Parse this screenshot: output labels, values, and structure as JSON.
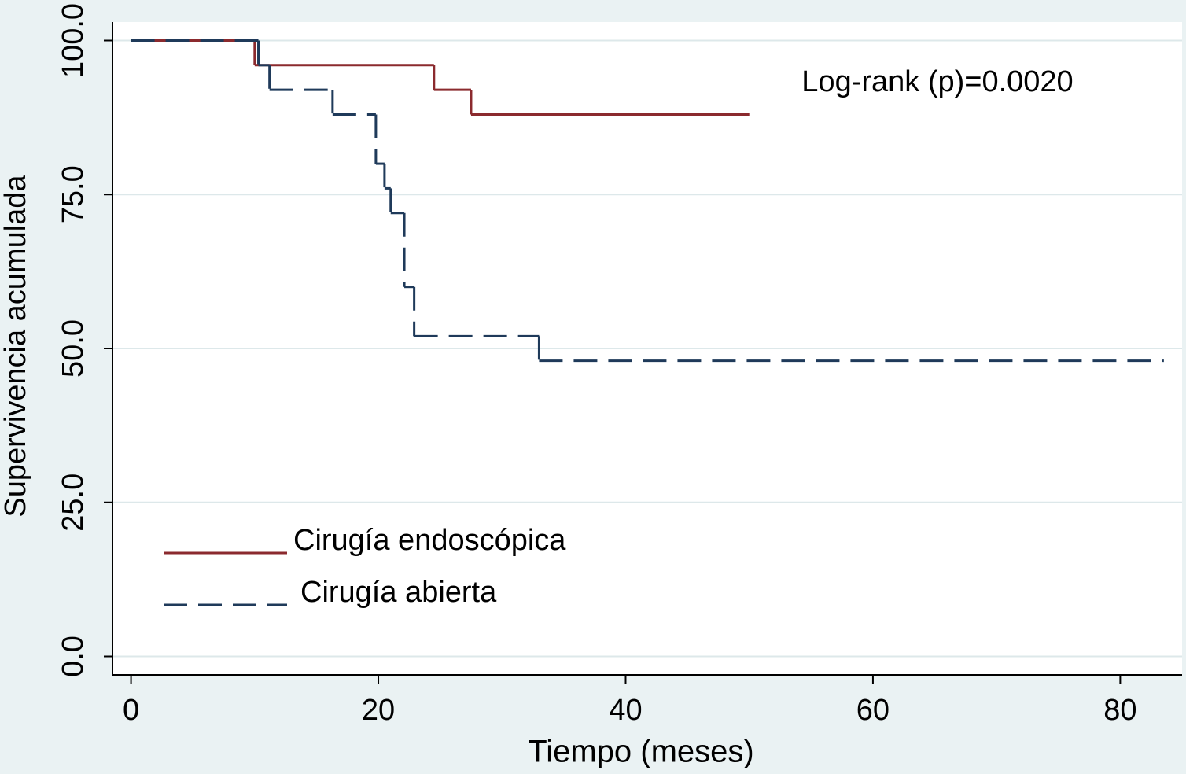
{
  "chart_data": {
    "type": "step",
    "y_label": "Supervivencia acumulada",
    "x_label": "Tiempo (meses)",
    "annotation": "Log-rank (p)=0.0020",
    "xlim": [
      -1.5,
      85
    ],
    "xticks": [
      0,
      20,
      40,
      60,
      80
    ],
    "ylim": [
      -3,
      103
    ],
    "yticks": [
      {
        "value": 0,
        "label": "0.0"
      },
      {
        "value": 25,
        "label": "25.0"
      },
      {
        "value": 50,
        "label": "50.0"
      },
      {
        "value": 75,
        "label": "75.0"
      },
      {
        "value": 100,
        "label": "100.0"
      }
    ],
    "grid": true,
    "legend": "lower left",
    "series": [
      {
        "name": "Cirugía endoscópica",
        "color": "#8b2a2e",
        "dashed": false,
        "x": [
          0,
          10,
          24.5,
          27.5,
          50
        ],
        "values": [
          100,
          96,
          92,
          88,
          88
        ]
      },
      {
        "name": "Cirugía abierta",
        "color": "#1f3a5a",
        "dashed": true,
        "x": [
          0,
          10.3,
          11.2,
          16.3,
          19.8,
          20.5,
          21,
          22.1,
          22.9,
          33,
          83.5
        ],
        "values": [
          100,
          96,
          92,
          88,
          80,
          76,
          72,
          60,
          52,
          48,
          48
        ]
      }
    ]
  }
}
